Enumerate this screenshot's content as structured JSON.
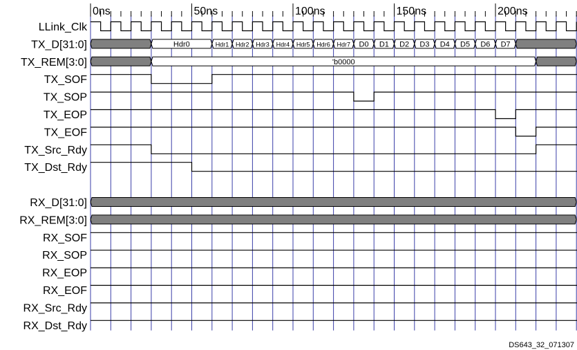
{
  "colors": {
    "grid": "#3a3ea8",
    "wave": "#000000",
    "bus_fill": "#808080",
    "background": "#ffffff"
  },
  "time_axis": {
    "unit": "ns",
    "period_ns": 10,
    "labels": [
      {
        "t": 0,
        "text": "0ns"
      },
      {
        "t": 50,
        "text": "50ns"
      },
      {
        "t": 100,
        "text": "100ns"
      },
      {
        "t": 150,
        "text": "150ns"
      },
      {
        "t": 200,
        "text": "200ns"
      }
    ]
  },
  "signals": [
    {
      "name": "LLink_Clk",
      "kind": "clock"
    },
    {
      "name": "TX_D[31:0]",
      "kind": "bus",
      "segments": [
        {
          "from": 0,
          "to": 30,
          "state": "undefined"
        },
        {
          "from": 30,
          "to": 60,
          "label": "Hdr0"
        },
        {
          "from": 60,
          "to": 70,
          "label": "Hdr1"
        },
        {
          "from": 70,
          "to": 80,
          "label": "Hdr2"
        },
        {
          "from": 80,
          "to": 90,
          "label": "Hdr3"
        },
        {
          "from": 90,
          "to": 100,
          "label": "Hdr4"
        },
        {
          "from": 100,
          "to": 110,
          "label": "Hdr5"
        },
        {
          "from": 110,
          "to": 120,
          "label": "Hdr6"
        },
        {
          "from": 120,
          "to": 130,
          "label": "Hdr7"
        },
        {
          "from": 130,
          "to": 140,
          "label": "D0"
        },
        {
          "from": 140,
          "to": 150,
          "label": "D1"
        },
        {
          "from": 150,
          "to": 160,
          "label": "D2"
        },
        {
          "from": 160,
          "to": 170,
          "label": "D3"
        },
        {
          "from": 170,
          "to": 180,
          "label": "D4"
        },
        {
          "from": 180,
          "to": 190,
          "label": "D5"
        },
        {
          "from": 190,
          "to": 200,
          "label": "D6"
        },
        {
          "from": 200,
          "to": 210,
          "label": "D7"
        },
        {
          "from": 210,
          "to": 240,
          "state": "undefined"
        }
      ]
    },
    {
      "name": "TX_REM[3:0]",
      "kind": "bus",
      "segments": [
        {
          "from": 0,
          "to": 30,
          "state": "undefined"
        },
        {
          "from": 30,
          "to": 220,
          "label": "'b0000"
        },
        {
          "from": 220,
          "to": 240,
          "state": "undefined"
        }
      ]
    },
    {
      "name": "TX_SOF",
      "kind": "bit",
      "transitions": [
        [
          0,
          1
        ],
        [
          30,
          0
        ],
        [
          60,
          1
        ]
      ]
    },
    {
      "name": "TX_SOP",
      "kind": "bit",
      "transitions": [
        [
          0,
          1
        ],
        [
          130,
          0
        ],
        [
          140,
          1
        ]
      ]
    },
    {
      "name": "TX_EOP",
      "kind": "bit",
      "transitions": [
        [
          0,
          1
        ],
        [
          200,
          0
        ],
        [
          210,
          1
        ]
      ]
    },
    {
      "name": "TX_EOF",
      "kind": "bit",
      "transitions": [
        [
          0,
          1
        ],
        [
          210,
          0
        ],
        [
          220,
          1
        ]
      ]
    },
    {
      "name": "TX_Src_Rdy",
      "kind": "bit",
      "transitions": [
        [
          0,
          1
        ],
        [
          30,
          0
        ],
        [
          220,
          1
        ]
      ]
    },
    {
      "name": "TX_Dst_Rdy",
      "kind": "bit",
      "transitions": [
        [
          0,
          1
        ],
        [
          50,
          0
        ]
      ]
    },
    {
      "name": "",
      "kind": "spacer"
    },
    {
      "name": "RX_D[31:0]",
      "kind": "bus",
      "segments": [
        {
          "from": 0,
          "to": 240,
          "state": "undefined"
        }
      ]
    },
    {
      "name": "RX_REM[3:0]",
      "kind": "bus",
      "segments": [
        {
          "from": 0,
          "to": 240,
          "state": "undefined"
        }
      ]
    },
    {
      "name": "RX_SOF",
      "kind": "bit",
      "transitions": [
        [
          0,
          1
        ]
      ]
    },
    {
      "name": "RX_SOP",
      "kind": "bit",
      "transitions": [
        [
          0,
          1
        ]
      ]
    },
    {
      "name": "RX_EOP",
      "kind": "bit",
      "transitions": [
        [
          0,
          1
        ]
      ]
    },
    {
      "name": "RX_EOF",
      "kind": "bit",
      "transitions": [
        [
          0,
          1
        ]
      ]
    },
    {
      "name": "RX_Src_Rdy",
      "kind": "bit",
      "transitions": [
        [
          0,
          1
        ]
      ]
    },
    {
      "name": "RX_Dst_Rdy",
      "kind": "bit",
      "transitions": [
        [
          0,
          1
        ]
      ]
    }
  ],
  "footer_id": "DS643_32_071307"
}
